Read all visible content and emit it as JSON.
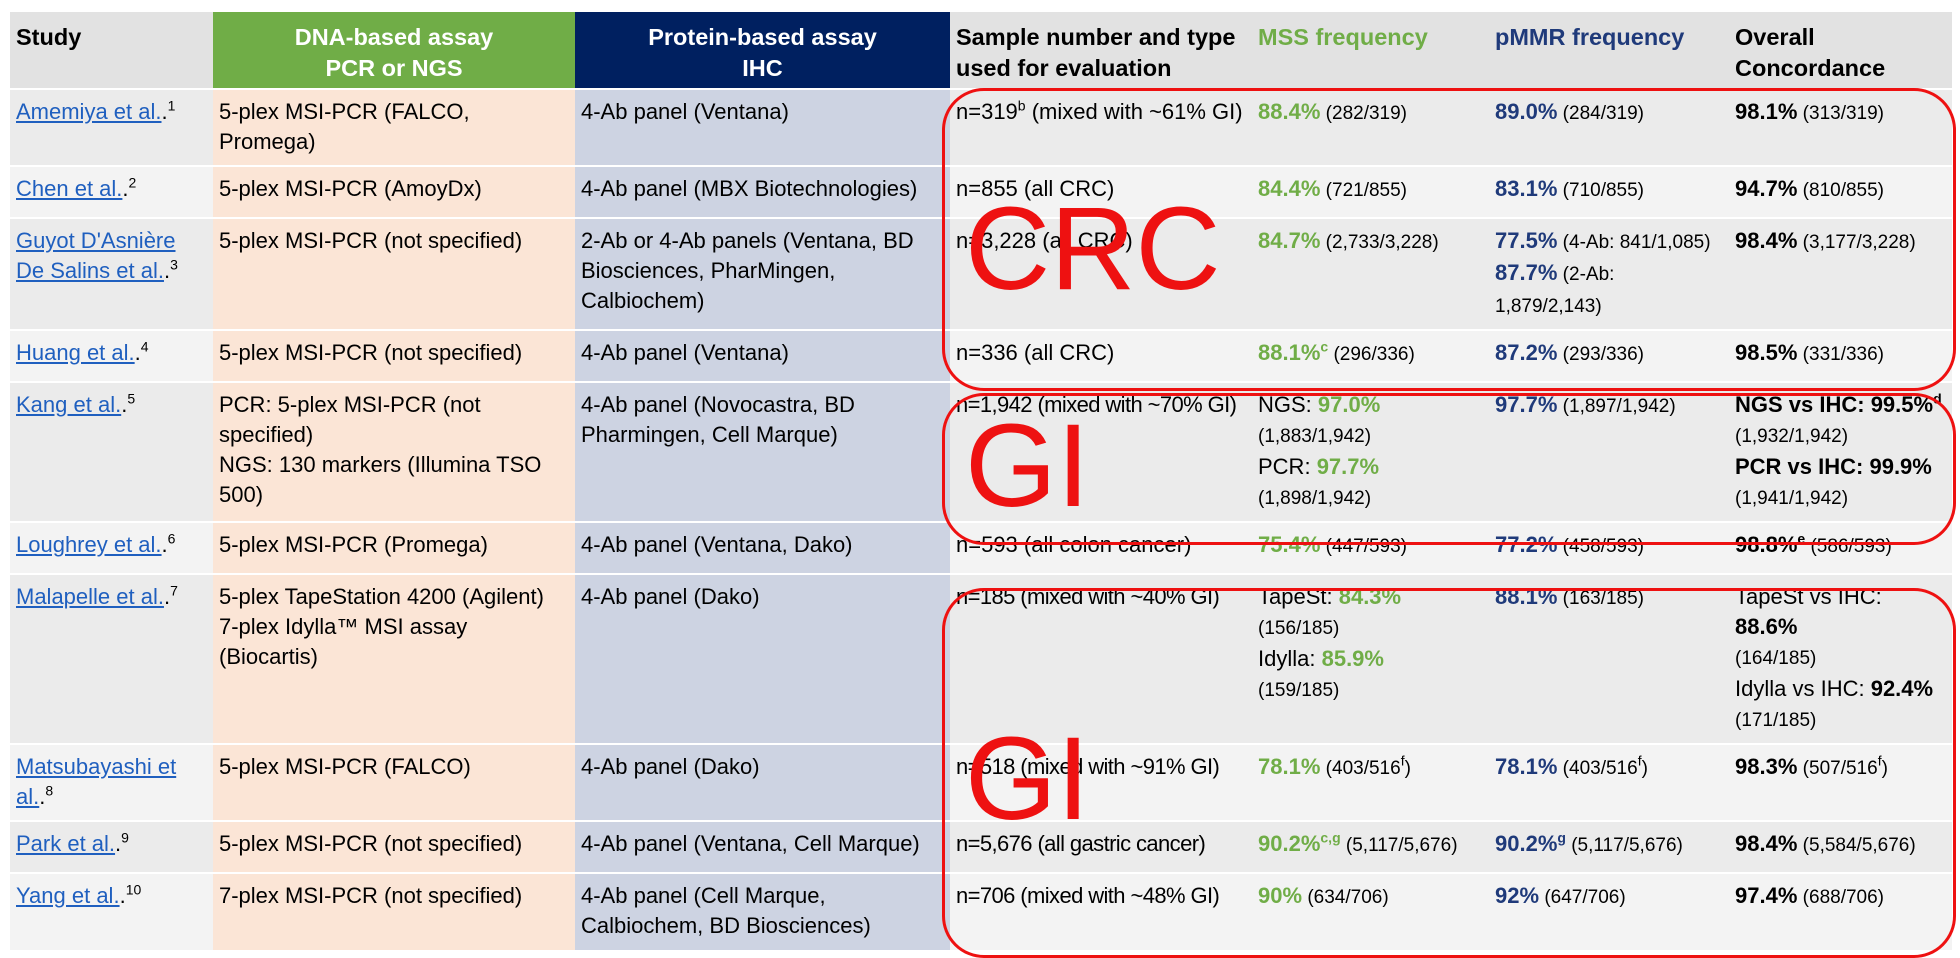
{
  "headers": {
    "study": "Study",
    "dna_line1": "DNA-based assay",
    "dna_line2": "PCR or NGS",
    "protein_line1": "Protein-based assay",
    "protein_line2": "IHC",
    "sample": "Sample number and type used for evaluation",
    "mss": "MSS frequency",
    "pmmr": "pMMR frequency",
    "overall": "Overall Concordance"
  },
  "rows": [
    {
      "study": "Amemiya et al.",
      "ref": "1",
      "dna": "5-plex MSI-PCR (FALCO, Promega)",
      "protein": "4-Ab panel (Ventana)",
      "sample_a": "n=319",
      "sample_sup": "b",
      "sample_b": " (mixed with ~61% GI)",
      "mss_val": "88.4%",
      "mss_frac": " (282/319)",
      "pmmr_val": "89.0%",
      "pmmr_frac": " (284/319)",
      "overall_val": "98.1%",
      "overall_frac": " (313/319)"
    },
    {
      "study": "Chen et al.",
      "ref": "2",
      "dna": "5-plex MSI-PCR (AmoyDx)",
      "protein": "4-Ab panel (MBX Biotechnologies)",
      "sample": "n=855 (all CRC)",
      "mss_val": "84.4%",
      "mss_frac": " (721/855)",
      "pmmr_val": "83.1%",
      "pmmr_frac": " (710/855)",
      "overall_val": "94.7%",
      "overall_frac": " (810/855)"
    },
    {
      "study": "Guyot D'Asnière De Salins et al.",
      "ref": "3",
      "dna": "5-plex MSI-PCR (not specified)",
      "protein": "2-Ab or 4-Ab panels (Ventana, BD Biosciences, PharMingen, Calbiochem)",
      "sample": "n=3,228 (all CRC)",
      "mss_val": "84.7%",
      "mss_frac": " (2,733/3,228)",
      "pmmr_val": "77.5%",
      "pmmr_frac": " (4-Ab: 841/1,085)",
      "pmmr_val2": "87.7%",
      "pmmr_frac2": " (2-Ab: 1,879/2,143)",
      "overall_val": "98.4%",
      "overall_frac": " (3,177/3,228)"
    },
    {
      "study": "Huang et al.",
      "ref": "4",
      "dna": "5-plex MSI-PCR (not specified)",
      "protein": "4-Ab panel (Ventana)",
      "sample": "n=336 (all CRC)",
      "mss_val": "88.1%",
      "mss_sup": "c",
      "mss_frac": " (296/336)",
      "pmmr_val": "87.2%",
      "pmmr_frac": " (293/336)",
      "overall_val": "98.5%",
      "overall_frac": " (331/336)"
    },
    {
      "study": "Kang et al.",
      "ref": "5",
      "dna1": "PCR: 5-plex MSI-PCR (not specified)",
      "dna2": "NGS: 130 markers (Illumina TSO 500)",
      "protein": "4-Ab panel (Novocastra, BD Pharmingen, Cell Marque)",
      "sample": "n=1,942 (mixed with ~70% GI)",
      "mss_l1": "NGS: ",
      "mss_v1": "97.0%",
      "mss_f1": "(1,883/1,942)",
      "mss_l2": "PCR: ",
      "mss_v2": "97.7%",
      "mss_f2": "(1,898/1,942)",
      "pmmr_val": "97.7%",
      "pmmr_frac": " (1,897/1,942)",
      "ov_l1": "NGS vs IHC: 99.5%",
      "ov_sup1": "d",
      "ov_f1": "(1,932/1,942)",
      "ov_l2": "PCR vs IHC: 99.9%",
      "ov_f2": "(1,941/1,942)"
    },
    {
      "study": "Loughrey et al.",
      "ref": "6",
      "dna": "5-plex MSI-PCR (Promega)",
      "protein": "4-Ab panel (Ventana, Dako)",
      "sample": "n=593 (all colon cancer)",
      "mss_val": "75.4%",
      "mss_frac": " (447/593)",
      "pmmr_val": "77.2%",
      "pmmr_frac": " (458/593)",
      "overall_val": "98.8%",
      "overall_sup": "e",
      "overall_frac": " (586/593)"
    },
    {
      "study": "Malapelle et al.",
      "ref": "7",
      "dna1": "5-plex TapeStation 4200 (Agilent)",
      "dna2": "7-plex Idylla™ MSI assay (Biocartis)",
      "protein": "4-Ab panel (Dako)",
      "sample": "n=185 (mixed with ~40% GI)",
      "mss_l1": "TapeSt: ",
      "mss_v1": "84.3%",
      "mss_f1": "(156/185)",
      "mss_l2": "Idylla: ",
      "mss_v2": "85.9%",
      "mss_f2": "(159/185)",
      "pmmr_val": "88.1%",
      "pmmr_frac": " (163/185)",
      "ov_l1": "TapeSt vs IHC:",
      "ov_v1": "88.6%",
      "ov_f1": "(164/185)",
      "ov_l2": "Idylla vs IHC: ",
      "ov_v2": "92.4%",
      "ov_f2": "(171/185)"
    },
    {
      "study": "Matsubayashi et al.",
      "ref": "8",
      "dna": "5-plex MSI-PCR (FALCO)",
      "protein": "4-Ab panel (Dako)",
      "sample": "n=518 (mixed with ~91% GI)",
      "mss_val": "78.1%",
      "mss_frac": " (403/516",
      "mss_fsup": "f",
      "pmmr_val": "78.1%",
      "pmmr_frac": " (403/516",
      "pmmr_fsup": "f",
      "overall_val": "98.3%",
      "overall_frac": " (507/516",
      "overall_fsup": "f",
      "close": ")"
    },
    {
      "study": "Park et al.",
      "ref": "9",
      "dna": "5-plex MSI-PCR (not specified)",
      "protein": "4-Ab panel (Ventana, Cell Marque)",
      "sample": "n=5,676 (all gastric cancer)",
      "mss_val": "90.2%",
      "mss_sup": "c,g",
      "mss_frac": " (5,117/5,676)",
      "pmmr_val": "90.2%",
      "pmmr_sup": "g",
      "pmmr_frac": " (5,117/5,676)",
      "overall_val": "98.4%",
      "overall_frac": " (5,584/5,676)"
    },
    {
      "study": "Yang et al.",
      "ref": "10",
      "dna": "7-plex MSI-PCR (not specified)",
      "protein": "4-Ab panel (Cell Marque, Calbiochem, BD Biosciences)",
      "sample": "n=706 (mixed with ~48% GI)",
      "mss_val": "90%",
      "mss_frac": " (634/706)",
      "pmmr_val": "92%",
      "pmmr_frac": " (647/706)",
      "overall_val": "97.4%",
      "overall_frac": " (688/706)"
    }
  ],
  "annotations": {
    "crc": "CRC",
    "gi_upper": "GI",
    "gi_lower": "GI",
    "color": "#ee1111"
  }
}
